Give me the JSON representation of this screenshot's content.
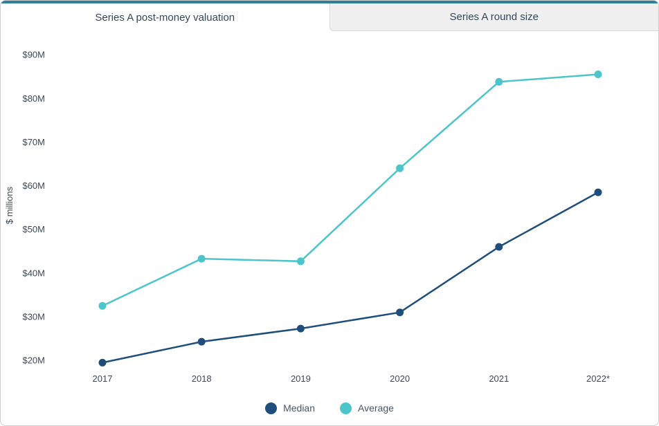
{
  "tabs": [
    {
      "label": "Series A post-money valuation",
      "active": true
    },
    {
      "label": "Series A round size",
      "active": false
    }
  ],
  "chart_data": {
    "type": "line",
    "title": "Series A post-money valuation",
    "categories": [
      "2017",
      "2018",
      "2019",
      "2020",
      "2021",
      "2022*"
    ],
    "series": [
      {
        "name": "Median",
        "color": "#1e4e79",
        "values": [
          19.5,
          24.3,
          27.3,
          31.0,
          46.0,
          58.5
        ]
      },
      {
        "name": "Average",
        "color": "#4cc5ca",
        "values": [
          32.5,
          43.3,
          42.7,
          64.0,
          83.8,
          85.5
        ]
      }
    ],
    "ylabel": "$ millions",
    "yticks": [
      {
        "value": 20,
        "label": "$20M"
      },
      {
        "value": 30,
        "label": "$30M"
      },
      {
        "value": 40,
        "label": "$40M"
      },
      {
        "value": 50,
        "label": "$50M"
      },
      {
        "value": 60,
        "label": "$60M"
      },
      {
        "value": 70,
        "label": "$70M"
      },
      {
        "value": 80,
        "label": "$80M"
      },
      {
        "value": 90,
        "label": "$90M"
      }
    ],
    "ylim": [
      17.5,
      93.5
    ],
    "grid": false,
    "legend_position": "bottom"
  },
  "colors": {
    "accent_top": "#2f7f96",
    "tab_active_bg": "#ffffff",
    "tab_inactive_bg": "#f0f0f0",
    "border": "#cfcfcf",
    "axis_text": "#3d4852"
  }
}
